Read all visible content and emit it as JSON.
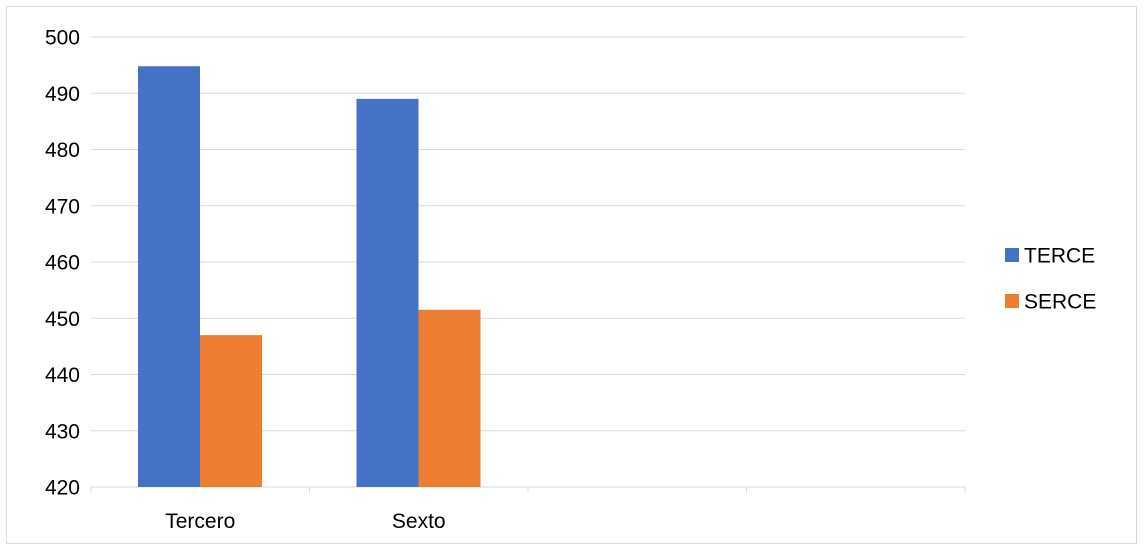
{
  "chart_data": {
    "type": "bar",
    "title": "",
    "xlabel": "",
    "ylabel": "",
    "categories": [
      "Tercero",
      "Sexto",
      "",
      ""
    ],
    "series": [
      {
        "name": "TERCE",
        "color": "#4472c4",
        "values": [
          494.8,
          489.0,
          null,
          null
        ]
      },
      {
        "name": "SERCE",
        "color": "#ed7d31",
        "values": [
          447.0,
          451.5,
          null,
          null
        ]
      }
    ],
    "ylim": [
      420,
      500
    ],
    "yticks": [
      420,
      430,
      440,
      450,
      460,
      470,
      480,
      490,
      500
    ],
    "grid": true,
    "legend_position": "right"
  }
}
